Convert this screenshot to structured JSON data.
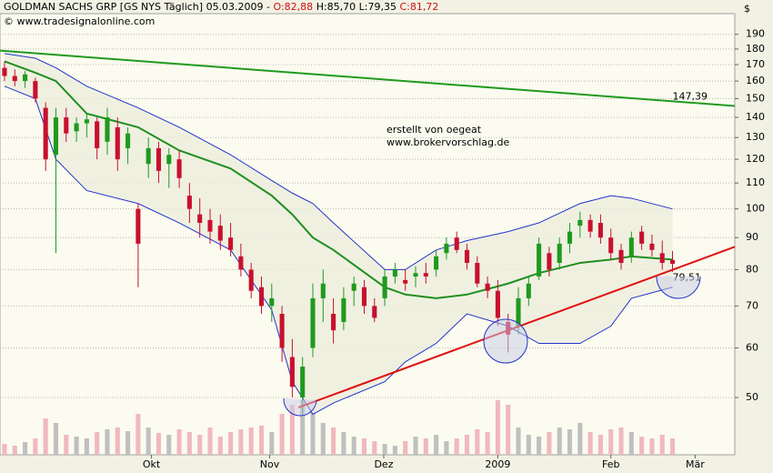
{
  "chart_data": {
    "type": "candlestick",
    "title": "GOLDMAN SACHS GRP [GS NYS  Täglich] 05.03.2009 -",
    "quote": [
      "O:82,88",
      "H:85,70 L:79,35",
      "C:81,72"
    ],
    "copyright": "© www.tradesignalonline.com",
    "annotations": [
      "erstellt von oegeat",
      "www.brokervorschlag.de"
    ],
    "y_unit": "$",
    "log_scale": true,
    "grid": true,
    "ylim": [
      40.5,
      205
    ],
    "yticks": [
      50,
      60,
      70,
      80,
      90,
      100,
      110,
      120,
      130,
      140,
      150,
      160,
      170,
      180,
      190
    ],
    "xlim": [
      -0.44,
      71.06
    ],
    "xticks": [
      {
        "value": 14.3,
        "label": "Okt"
      },
      {
        "value": 25.8,
        "label": "Nov"
      },
      {
        "value": 36.9,
        "label": "Dez"
      },
      {
        "value": 48,
        "label": "2009"
      },
      {
        "value": 59,
        "label": "Feb"
      },
      {
        "value": 67.2,
        "label": "Mär"
      }
    ],
    "candles": {
      "up_color": "#1e9a1e",
      "down_color": "#c8102e",
      "open": [
        168,
        163,
        160,
        160,
        145,
        122,
        140,
        133,
        137,
        138,
        128,
        135,
        125,
        100,
        118,
        125,
        118,
        120,
        105,
        98,
        96,
        94,
        90,
        84,
        80,
        75,
        70,
        68,
        58,
        50,
        60,
        72,
        68,
        66,
        74,
        75,
        70,
        72,
        78,
        77,
        78,
        79,
        80,
        85,
        90,
        86,
        82,
        76,
        74,
        66,
        65,
        72,
        78,
        85,
        82,
        88,
        94,
        96,
        95,
        90,
        86,
        84,
        92,
        88,
        85,
        82.88
      ],
      "high": [
        172,
        167,
        166,
        162,
        148,
        145,
        145,
        140,
        142,
        140,
        145,
        140,
        135,
        102,
        130,
        128,
        125,
        124,
        110,
        104,
        100,
        98,
        95,
        88,
        82,
        78,
        76,
        70,
        62,
        58,
        76,
        80,
        72,
        75,
        78,
        77,
        72,
        80,
        82,
        80,
        81,
        82,
        86,
        90,
        92,
        88,
        84,
        78,
        77,
        68,
        75,
        78,
        90,
        87,
        90,
        95,
        99,
        98,
        98,
        93,
        88,
        92,
        94,
        91,
        89,
        85.7
      ],
      "low": [
        160,
        157,
        156,
        148,
        115,
        85,
        128,
        128,
        130,
        120,
        122,
        115,
        118,
        75,
        112,
        110,
        108,
        108,
        95,
        90,
        88,
        86,
        84,
        78,
        72,
        68,
        66,
        57,
        50,
        47,
        58,
        66,
        61,
        64,
        70,
        68,
        66,
        70,
        76,
        74,
        75,
        76,
        78,
        83,
        85,
        80,
        75,
        72,
        65,
        59,
        63,
        70,
        77,
        78,
        80,
        85,
        90,
        90,
        88,
        83,
        80,
        82,
        86,
        84,
        80,
        79.35
      ],
      "close": [
        163,
        160,
        164,
        150,
        120,
        140,
        132,
        137,
        139,
        125,
        140,
        120,
        132,
        88,
        125,
        115,
        122,
        112,
        100,
        95,
        92,
        89,
        86,
        80,
        74,
        70,
        72,
        60,
        52,
        56,
        72,
        76,
        64,
        72,
        76,
        70,
        67,
        78,
        80,
        76,
        79,
        78,
        84,
        88,
        86,
        82,
        76,
        74,
        67,
        63,
        72,
        76,
        88,
        80,
        88,
        92,
        96,
        92,
        90,
        85,
        82,
        90,
        88,
        86,
        82,
        81.72
      ]
    },
    "volume": {
      "ylim": [
        0,
        100
      ],
      "values": [
        12,
        10,
        14,
        18,
        40,
        35,
        22,
        20,
        18,
        25,
        28,
        30,
        26,
        45,
        30,
        24,
        22,
        28,
        25,
        22,
        30,
        20,
        25,
        28,
        30,
        32,
        25,
        45,
        55,
        60,
        50,
        35,
        30,
        25,
        20,
        18,
        15,
        12,
        10,
        15,
        20,
        18,
        22,
        15,
        18,
        22,
        28,
        25,
        60,
        55,
        30,
        22,
        20,
        25,
        30,
        28,
        35,
        25,
        22,
        28,
        30,
        25,
        20,
        18,
        22,
        18
      ]
    },
    "bands": {
      "color": "#2233cc",
      "fill": "#ededdd",
      "x": [
        0,
        3,
        5,
        8,
        13,
        17,
        22,
        26,
        28,
        30,
        32,
        37,
        39,
        42,
        45,
        49,
        52,
        56,
        59,
        61,
        65
      ],
      "upper": [
        177,
        174,
        168,
        157,
        145,
        135,
        122,
        111,
        106,
        102,
        95,
        80,
        80,
        86,
        89,
        92,
        95,
        102,
        105,
        104,
        100
      ],
      "lower": [
        157,
        150,
        120,
        107,
        102,
        95,
        86,
        69,
        53,
        47,
        49,
        53,
        57,
        61,
        68,
        65,
        61,
        61,
        65,
        72,
        75
      ]
    },
    "average": {
      "color": "#1f8f1f",
      "values": [
        172,
        165,
        160,
        142,
        135,
        124,
        116,
        105,
        98,
        90,
        86,
        75,
        73,
        72,
        73,
        76,
        79,
        82,
        83,
        84,
        83
      ]
    },
    "trendlines": [
      {
        "color": "#1f9a1f",
        "x": [
          -0.44,
          71.06
        ],
        "values": [
          179,
          146
        ],
        "end_label": {
          "value": 147.39,
          "label": "147,39"
        }
      },
      {
        "color": "#e01010",
        "x": [
          28.6,
          71.06
        ],
        "values": [
          48.2,
          87
        ],
        "end_label": {
          "value": 79.51,
          "label": "79,51"
        }
      }
    ]
  }
}
